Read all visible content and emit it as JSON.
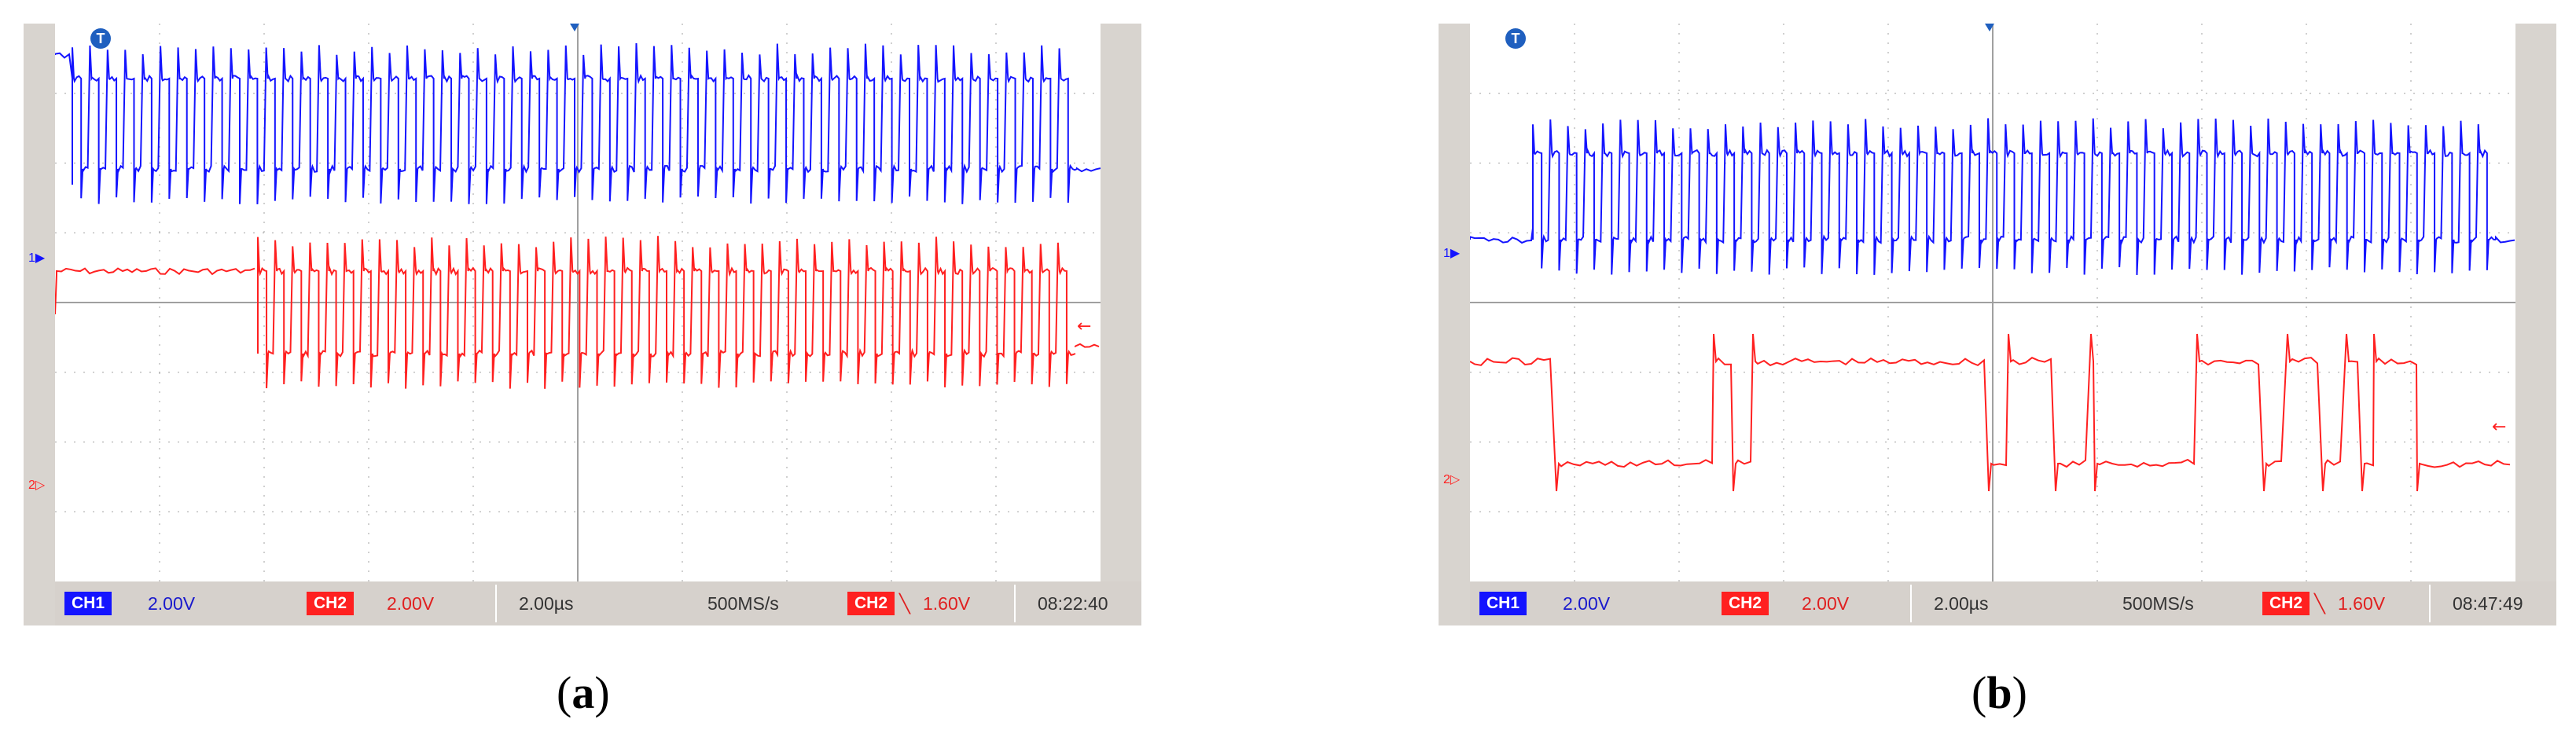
{
  "panels": [
    {
      "id": "a",
      "caption_letter": "a",
      "trigger_badge": "T",
      "ch1_marker": "1",
      "ch2_marker": "2",
      "status": {
        "ch1_label": "CH1",
        "ch1_scale": "2.00V",
        "ch2_label": "CH2",
        "ch2_scale": "2.00V",
        "timebase": "2.00µs",
        "sample_rate": "500MS/s",
        "trigger_source": "CH2",
        "trigger_level": "1.60V",
        "clock": "08:22:40"
      },
      "ch1_pulses": 57,
      "ch2_pulses": 47
    },
    {
      "id": "b",
      "caption_letter": "b",
      "trigger_badge": "T",
      "ch1_marker": "1",
      "ch2_marker": "2",
      "status": {
        "ch1_label": "CH1",
        "ch1_scale": "2.00V",
        "ch2_label": "CH2",
        "ch2_scale": "2.00V",
        "timebase": "2.00µs",
        "sample_rate": "500MS/s",
        "trigger_source": "CH2",
        "trigger_level": "1.60V",
        "clock": "08:47:49"
      },
      "ch1_pulses": 55,
      "ch2_pulses": 0
    }
  ],
  "colors": {
    "ch1": "#1414ff",
    "ch2": "#ff2020",
    "grid": "#a0a0a0"
  }
}
